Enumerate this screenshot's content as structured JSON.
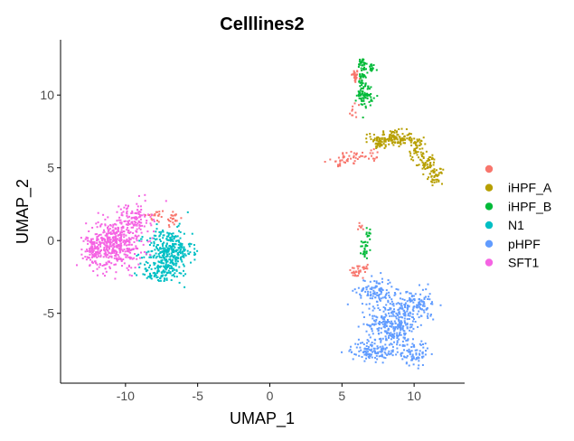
{
  "chart_data": {
    "type": "scatter",
    "title": "Celllines2",
    "xlabel": "UMAP_1",
    "ylabel": "UMAP_2",
    "xlim": [
      -14.5,
      13.5
    ],
    "ylim": [
      -9.8,
      13.8
    ],
    "xticks": [
      -10,
      -5,
      0,
      5,
      10
    ],
    "yticks": [
      -5,
      0,
      5,
      10
    ],
    "grid": false,
    "legend": "right",
    "series": [
      {
        "name": "",
        "color": "#F8766D",
        "clusters": [
          {
            "cx": 5.9,
            "cy": 11.3,
            "sx": 0.15,
            "sy": 0.3,
            "n": 30
          },
          {
            "cx": 5.9,
            "cy": 9.0,
            "sx": 0.3,
            "sy": 0.4,
            "n": 10
          },
          {
            "cx": 5.7,
            "cy": 5.7,
            "sx": 0.6,
            "sy": 0.3,
            "n": 30
          },
          {
            "cx": 7.0,
            "cy": 5.9,
            "sx": 0.4,
            "sy": 0.3,
            "n": 15
          },
          {
            "cx": 4.8,
            "cy": 5.3,
            "sx": 0.3,
            "sy": 0.3,
            "n": 15
          },
          {
            "cx": -6.7,
            "cy": 1.5,
            "sx": 0.3,
            "sy": 0.4,
            "n": 25
          },
          {
            "cx": -8.0,
            "cy": 1.7,
            "sx": 0.5,
            "sy": 0.3,
            "n": 20
          },
          {
            "cx": 6.0,
            "cy": -2.1,
            "sx": 0.25,
            "sy": 0.3,
            "n": 25
          },
          {
            "cx": 6.7,
            "cy": -1.9,
            "sx": 0.2,
            "sy": 0.2,
            "n": 10
          },
          {
            "cx": 6.3,
            "cy": 1.0,
            "sx": 0.15,
            "sy": 0.2,
            "n": 8
          }
        ]
      },
      {
        "name": "iHPF_A",
        "color": "#B79F00",
        "clusters": [
          {
            "cx": 8.5,
            "cy": 7.0,
            "sx": 0.9,
            "sy": 0.35,
            "n": 140
          },
          {
            "cx": 10.2,
            "cy": 6.3,
            "sx": 0.3,
            "sy": 0.5,
            "n": 50
          },
          {
            "cx": 10.9,
            "cy": 5.3,
            "sx": 0.4,
            "sy": 0.4,
            "n": 50
          },
          {
            "cx": 11.5,
            "cy": 4.4,
            "sx": 0.3,
            "sy": 0.3,
            "n": 40
          },
          {
            "cx": 7.6,
            "cy": 6.6,
            "sx": 0.3,
            "sy": 0.2,
            "n": 20
          }
        ]
      },
      {
        "name": "iHPF_B",
        "color": "#00BA38",
        "clusters": [
          {
            "cx": 6.4,
            "cy": 12.1,
            "sx": 0.2,
            "sy": 0.3,
            "n": 25
          },
          {
            "cx": 7.0,
            "cy": 11.9,
            "sx": 0.3,
            "sy": 0.2,
            "n": 20
          },
          {
            "cx": 6.4,
            "cy": 11.0,
            "sx": 0.15,
            "sy": 0.5,
            "n": 35
          },
          {
            "cx": 6.6,
            "cy": 10.0,
            "sx": 0.35,
            "sy": 0.5,
            "n": 60
          },
          {
            "cx": 6.6,
            "cy": -0.6,
            "sx": 0.15,
            "sy": 0.4,
            "n": 25
          },
          {
            "cx": 6.9,
            "cy": 0.5,
            "sx": 0.12,
            "sy": 0.3,
            "n": 12
          }
        ]
      },
      {
        "name": "N1",
        "color": "#00BFC4",
        "clusters": [
          {
            "cx": -7.0,
            "cy": -0.8,
            "sx": 1.0,
            "sy": 1.0,
            "n": 340
          },
          {
            "cx": -7.6,
            "cy": -2.2,
            "sx": 0.9,
            "sy": 0.4,
            "n": 80
          }
        ]
      },
      {
        "name": "pHPF",
        "color": "#619CFF",
        "clusters": [
          {
            "cx": 8.5,
            "cy": -5.8,
            "sx": 1.1,
            "sy": 1.1,
            "n": 320
          },
          {
            "cx": 7.3,
            "cy": -3.5,
            "sx": 0.8,
            "sy": 0.6,
            "n": 110
          },
          {
            "cx": 10.0,
            "cy": -4.4,
            "sx": 0.8,
            "sy": 0.7,
            "n": 100
          },
          {
            "cx": 10.0,
            "cy": -7.8,
            "sx": 0.6,
            "sy": 0.5,
            "n": 70
          },
          {
            "cx": 6.9,
            "cy": -7.6,
            "sx": 0.8,
            "sy": 0.4,
            "n": 100
          },
          {
            "cx": 10.8,
            "cy": -4.5,
            "sx": 0.3,
            "sy": 0.5,
            "n": 20
          }
        ]
      },
      {
        "name": "SFT1",
        "color": "#F564E3",
        "clusters": [
          {
            "cx": -10.8,
            "cy": -0.3,
            "sx": 1.2,
            "sy": 1.0,
            "n": 450
          },
          {
            "cx": -9.5,
            "cy": 1.5,
            "sx": 0.8,
            "sy": 0.7,
            "n": 120
          },
          {
            "cx": -12.2,
            "cy": -0.7,
            "sx": 0.5,
            "sy": 0.7,
            "n": 60
          }
        ]
      }
    ]
  }
}
